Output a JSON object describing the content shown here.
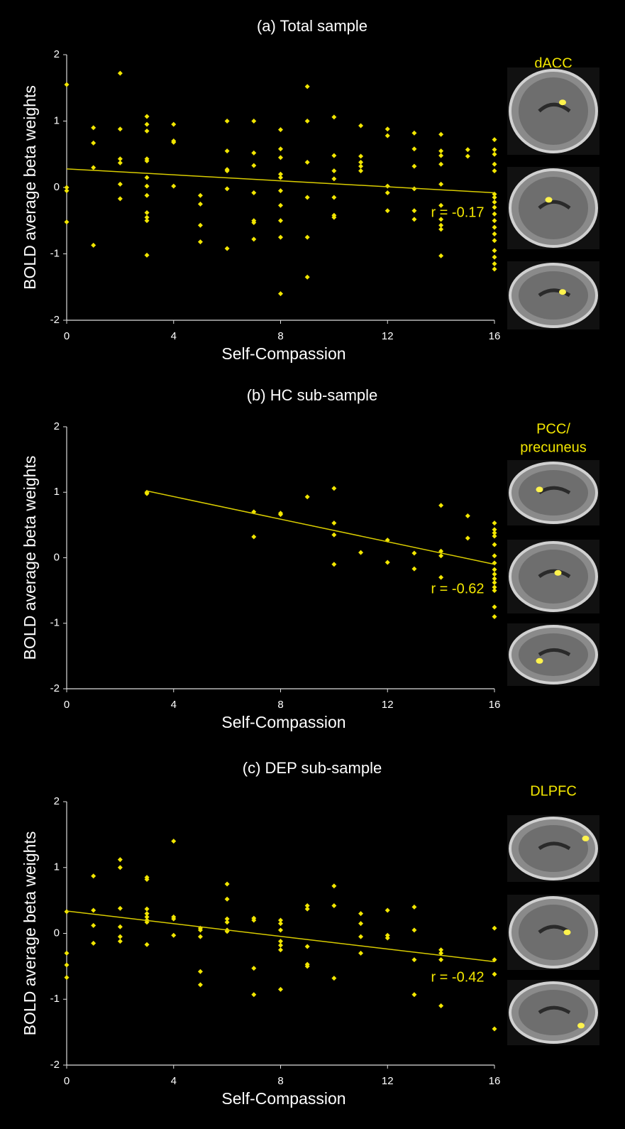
{
  "chart_data": [
    {
      "type": "scatter",
      "title": "(a) Total sample",
      "xlabel": "Self-Compassion",
      "ylabel": "BOLD average beta weights",
      "annotation": "r = -0.17",
      "region_label": [
        "dACC"
      ],
      "color": "#f2e600",
      "line_color": "#d9cc00",
      "xlim": [
        0,
        16
      ],
      "ylim": [
        -2,
        2
      ],
      "xticks": [
        0,
        4,
        8,
        12,
        16
      ],
      "yticks": [
        -2,
        -1,
        0,
        1,
        2
      ],
      "x": [
        0,
        0,
        0,
        0,
        1,
        1,
        1,
        1,
        2,
        2,
        2,
        2,
        2,
        2,
        3,
        3,
        3,
        3,
        3,
        3,
        3,
        3,
        3,
        3,
        3,
        3,
        4,
        4,
        4,
        4,
        5,
        5,
        5,
        5,
        6,
        6,
        6,
        6,
        6,
        6,
        7,
        7,
        7,
        7,
        7,
        7,
        7,
        8,
        8,
        8,
        8,
        8,
        8,
        8,
        8,
        8,
        8,
        9,
        9,
        9,
        9,
        9,
        9,
        10,
        10,
        10,
        10,
        10,
        10,
        10,
        11,
        11,
        11,
        11,
        11,
        12,
        12,
        12,
        12,
        12,
        13,
        13,
        13,
        13,
        13,
        13,
        14,
        14,
        14,
        14,
        14,
        14,
        14,
        14,
        14,
        14,
        15,
        15,
        16,
        16,
        16,
        16,
        16,
        16,
        16,
        16,
        16,
        16,
        16,
        16,
        16,
        16,
        16,
        16,
        16,
        16
      ],
      "values": [
        1.55,
        0,
        -0.05,
        -0.52,
        0.9,
        0.67,
        0.3,
        -0.87,
        1.72,
        0.88,
        0.43,
        0.37,
        0.05,
        -0.17,
        1.07,
        0.95,
        0.85,
        0.43,
        0.4,
        0.15,
        0.02,
        -0.12,
        -0.38,
        -0.45,
        -0.5,
        -1.02,
        0.95,
        0.7,
        0.68,
        0.02,
        -0.12,
        -0.25,
        -0.57,
        -0.82,
        1.0,
        0.55,
        0.27,
        0.25,
        -0.02,
        -0.92,
        1.0,
        0.52,
        0.33,
        -0.08,
        -0.5,
        -0.53,
        -0.78,
        0.87,
        0.58,
        0.45,
        0.2,
        0.15,
        -0.05,
        -0.27,
        -0.5,
        -0.75,
        -1.6,
        1.52,
        1.0,
        0.38,
        -0.15,
        -0.75,
        -1.35,
        1.06,
        0.48,
        0.25,
        0.13,
        -0.15,
        -0.42,
        -0.45,
        0.93,
        0.47,
        0.38,
        0.32,
        0.25,
        0.88,
        0.78,
        0.02,
        -0.08,
        -0.35,
        0.82,
        0.58,
        0.32,
        -0.02,
        -0.35,
        -0.48,
        0.8,
        0.55,
        0.48,
        0.35,
        0.05,
        -0.27,
        -0.48,
        -0.57,
        -0.63,
        -1.03,
        0.57,
        0.47,
        0.72,
        0.57,
        0.5,
        0.35,
        0.25,
        -0.1,
        -0.15,
        -0.22,
        -0.3,
        -0.4,
        -0.5,
        -0.6,
        -0.7,
        -0.8,
        -0.95,
        -1.05,
        -1.15,
        -1.23
      ],
      "trendline": {
        "x": [
          0,
          16
        ],
        "y": [
          0.28,
          -0.08
        ]
      }
    },
    {
      "type": "scatter",
      "title": "(b) HC sub-sample",
      "xlabel": "Self-Compassion",
      "ylabel": "BOLD average beta weights",
      "annotation": "r = -0.62",
      "region_label": [
        "PCC/",
        "precuneus"
      ],
      "color": "#f2e600",
      "line_color": "#d9cc00",
      "xlim": [
        0,
        16
      ],
      "ylim": [
        -2,
        2
      ],
      "xticks": [
        0,
        4,
        8,
        12,
        16
      ],
      "yticks": [
        -2,
        -1,
        0,
        1,
        2
      ],
      "x": [
        3,
        3,
        7,
        7,
        8,
        8,
        9,
        10,
        10,
        10,
        10,
        11,
        12,
        12,
        13,
        13,
        14,
        14,
        14,
        14,
        15,
        15,
        16,
        16,
        16,
        16,
        16,
        16,
        16,
        16,
        16,
        16,
        16,
        16,
        16,
        16,
        16
      ],
      "values": [
        1.0,
        0.98,
        0.7,
        0.32,
        0.68,
        0.66,
        0.93,
        1.06,
        0.53,
        0.35,
        -0.1,
        0.08,
        0.27,
        -0.07,
        0.07,
        -0.17,
        0.8,
        0.1,
        0.03,
        -0.3,
        0.64,
        0.3,
        0.53,
        0.43,
        0.38,
        0.33,
        0.2,
        0.03,
        -0.08,
        -0.18,
        -0.25,
        -0.32,
        -0.38,
        -0.45,
        -0.5,
        -0.75,
        -0.9
      ],
      "trendline": {
        "x": [
          3,
          16
        ],
        "y": [
          1.02,
          -0.1
        ]
      }
    },
    {
      "type": "scatter",
      "title": "(c) DEP sub-sample",
      "xlabel": "Self-Compassion",
      "ylabel": "BOLD average beta weights",
      "annotation": "r = -0.42",
      "region_label": [
        "DLPFC"
      ],
      "color": "#f2e600",
      "line_color": "#d9cc00",
      "xlim": [
        0,
        16
      ],
      "ylim": [
        -2,
        2
      ],
      "xticks": [
        0,
        4,
        8,
        12,
        16
      ],
      "yticks": [
        -2,
        -1,
        0,
        1,
        2
      ],
      "x": [
        0,
        0,
        0,
        0,
        1,
        1,
        1,
        1,
        2,
        2,
        2,
        2,
        2,
        2,
        3,
        3,
        3,
        3,
        3,
        3,
        3,
        3,
        4,
        4,
        4,
        4,
        5,
        5,
        5,
        5,
        5,
        6,
        6,
        6,
        6,
        6,
        6,
        7,
        7,
        7,
        7,
        8,
        8,
        8,
        8,
        8,
        8,
        8,
        9,
        9,
        9,
        9,
        9,
        10,
        10,
        10,
        11,
        11,
        11,
        11,
        12,
        12,
        12,
        13,
        13,
        13,
        13,
        14,
        14,
        14,
        14,
        16,
        16,
        16,
        16
      ],
      "values": [
        0.33,
        -0.3,
        -0.48,
        -0.67,
        0.87,
        0.35,
        0.12,
        -0.15,
        1.12,
        1.0,
        0.38,
        0.1,
        -0.05,
        -0.12,
        0.85,
        0.82,
        0.37,
        0.3,
        0.25,
        0.2,
        0.17,
        -0.17,
        1.4,
        0.25,
        0.22,
        -0.03,
        0.08,
        0.05,
        -0.05,
        -0.58,
        -0.78,
        0.75,
        0.52,
        0.22,
        0.17,
        0.05,
        0.03,
        0.23,
        0.2,
        -0.53,
        -0.93,
        0.2,
        0.15,
        0.05,
        -0.12,
        -0.18,
        -0.25,
        -0.85,
        0.42,
        0.37,
        -0.2,
        -0.47,
        -0.5,
        0.72,
        0.42,
        -0.68,
        0.3,
        0.15,
        -0.05,
        -0.3,
        0.35,
        -0.03,
        -0.07,
        0.4,
        0.05,
        -0.4,
        -0.93,
        -0.25,
        -0.3,
        -0.4,
        -1.1,
        0.08,
        -0.4,
        -0.62,
        -1.45
      ],
      "trendline": {
        "x": [
          0,
          16
        ],
        "y": [
          0.34,
          -0.43
        ]
      }
    }
  ]
}
